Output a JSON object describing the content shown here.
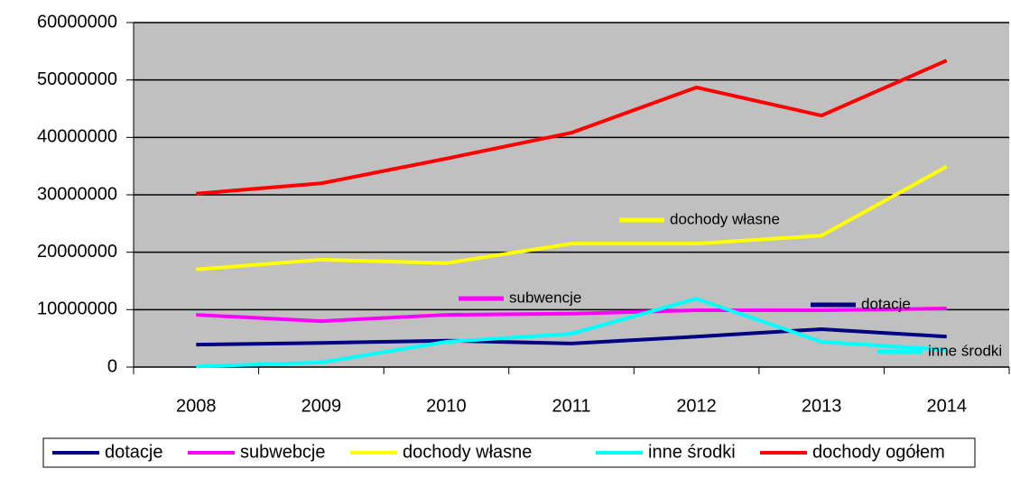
{
  "chart_data": {
    "type": "line",
    "categories": [
      "2008",
      "2009",
      "2010",
      "2011",
      "2012",
      "2013",
      "2014"
    ],
    "series": [
      {
        "name": "dotacje",
        "color": "#000080",
        "values": [
          3900000,
          4200000,
          4600000,
          4100000,
          5300000,
          6600000,
          5300000
        ]
      },
      {
        "name": "subwebcje",
        "color": "#ff00ff",
        "values": [
          9100000,
          8000000,
          9100000,
          9300000,
          9900000,
          9900000,
          10200000
        ]
      },
      {
        "name": "dochody własne",
        "color": "#ffff00",
        "values": [
          17000000,
          18700000,
          18100000,
          21500000,
          21500000,
          22900000,
          34900000
        ]
      },
      {
        "name": "inne środki",
        "color": "#00ffff",
        "values": [
          100000,
          800000,
          4400000,
          5800000,
          11900000,
          4400000,
          3000000
        ]
      },
      {
        "name": "dochody ogółem",
        "color": "#ff0000",
        "values": [
          30200000,
          32000000,
          36300000,
          40800000,
          48700000,
          43800000,
          53400000
        ]
      }
    ],
    "ylim": [
      0,
      60000000
    ],
    "yticks": [
      0,
      10000000,
      20000000,
      30000000,
      40000000,
      50000000,
      60000000
    ],
    "grid": true,
    "legend": "bottom",
    "annotations": [
      {
        "text": "dochody własne",
        "color": "#ffff00"
      },
      {
        "text": "subwencje",
        "color": "#ff00ff"
      },
      {
        "text": "dotacje",
        "color": "#000080"
      },
      {
        "text": "inne środki",
        "color": "#00ffff"
      }
    ]
  }
}
